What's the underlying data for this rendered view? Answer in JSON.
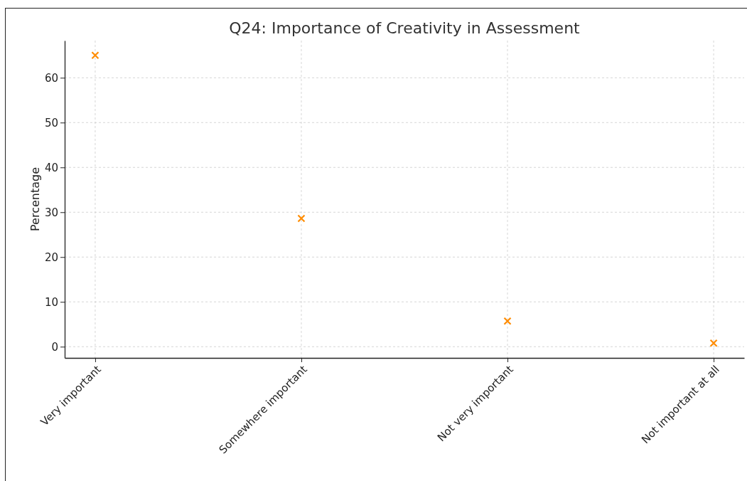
{
  "chart_data": {
    "type": "scatter",
    "title": "Q24: Importance of Creativity in Assessment",
    "ylabel": "Percentage",
    "categories": [
      "Very important",
      "Somewhere important",
      "Not very important",
      "Not important at all"
    ],
    "series": [
      {
        "color": "#ff8c00",
        "values": [
          65,
          28.6,
          5.7,
          0.8
        ]
      }
    ],
    "ylim": [
      -2.5,
      68.3
    ],
    "yticks": [
      0,
      10,
      20,
      30,
      40,
      50,
      60
    ],
    "grid": true,
    "marker": "cross"
  }
}
